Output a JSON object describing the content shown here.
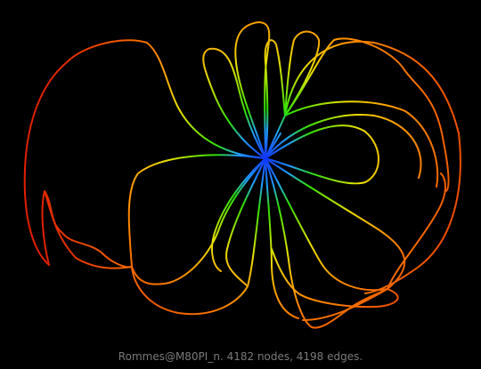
{
  "caption": "Rommes@M80PI_n. 4182 nodes, 4198 edges.",
  "colors": {
    "background": "#000000",
    "caption_text": "#7a7a7a",
    "gradient_center": "#1030ff",
    "gradient_mid_green": "#30e000",
    "gradient_yellow": "#e8e000",
    "gradient_orange": "#ff9000",
    "gradient_outer_red": "#e02000"
  }
}
